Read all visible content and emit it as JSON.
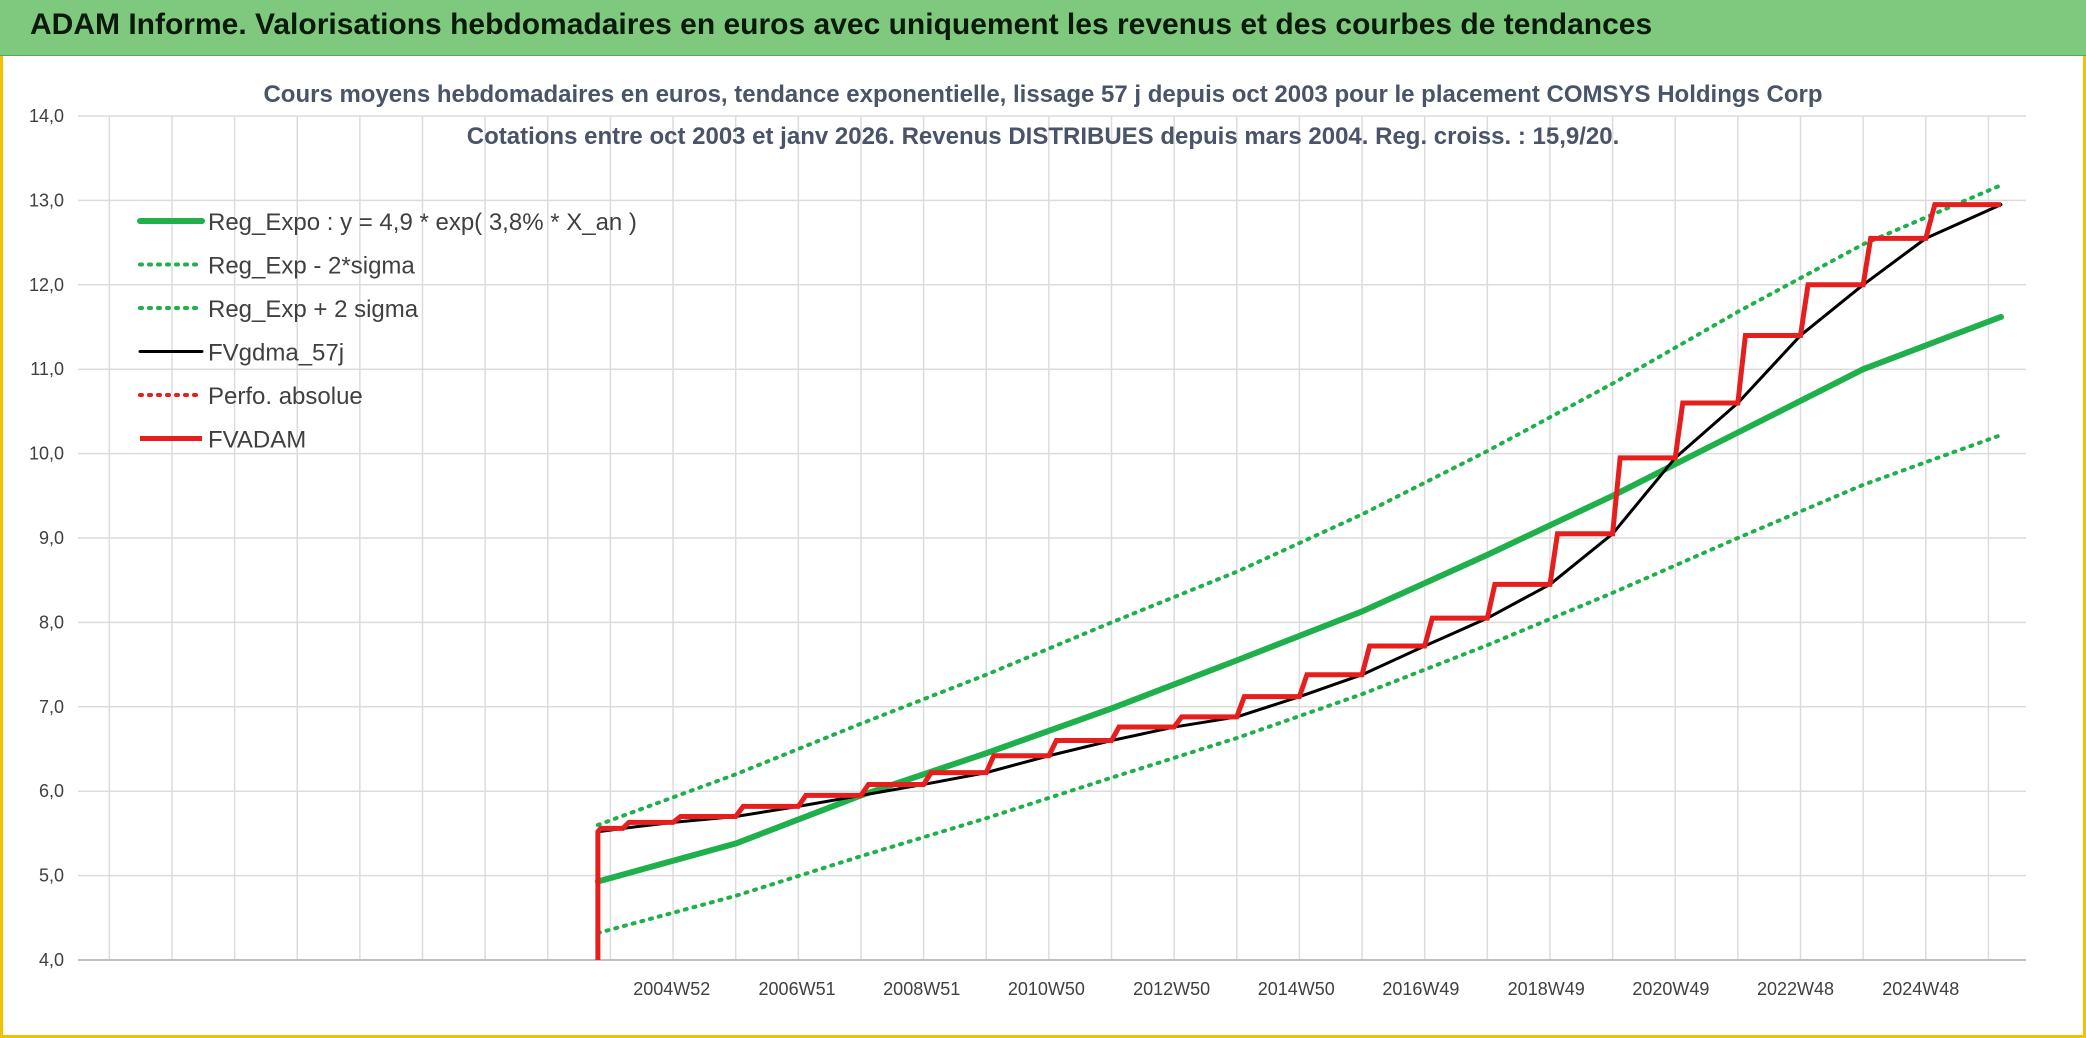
{
  "banner": {
    "title": "ADAM Informe. Valorisations hebdomadaires en euros avec uniquement les revenus et des courbes de tendances"
  },
  "colors": {
    "banner_bg": "#7fc97f",
    "frame_accent": "#f2c200",
    "trend_green": "#1fb04b",
    "price_black": "#000000",
    "adam_red": "#e61e1e",
    "grid": "#dcdcdc"
  },
  "chart_data": {
    "type": "line",
    "title": [
      "Cours moyens hebdomadaires en euros, tendance exponentielle, lissage 57 j depuis oct 2003 pour le placement COMSYS Holdings Corp",
      "Cotations entre oct 2003 et janv 2026. Revenus DISTRIBUES depuis mars 2004. Reg. croiss. : 15,9/20."
    ],
    "xlabel": "",
    "ylabel": "",
    "ylim": [
      4.0,
      14.0
    ],
    "yticks": [
      "4,0",
      "5,0",
      "6,0",
      "7,0",
      "8,0",
      "9,0",
      "10,0",
      "11,0",
      "12,0",
      "13,0",
      "14,0"
    ],
    "xlim": [
      1995.5,
      2026.6
    ],
    "xticks": [
      {
        "label": "2004W52",
        "x": 2004.98
      },
      {
        "label": "2006W51",
        "x": 2006.98
      },
      {
        "label": "2008W51",
        "x": 2008.97
      },
      {
        "label": "2010W50",
        "x": 2010.96
      },
      {
        "label": "2012W50",
        "x": 2012.96
      },
      {
        "label": "2014W50",
        "x": 2014.95
      },
      {
        "label": "2016W49",
        "x": 2016.94
      },
      {
        "label": "2018W49",
        "x": 2018.94
      },
      {
        "label": "2020W49",
        "x": 2020.93
      },
      {
        "label": "2022W48",
        "x": 2022.92
      },
      {
        "label": "2024W48",
        "x": 2024.92
      }
    ],
    "grid": true,
    "legend_position": "top-left",
    "series": [
      {
        "name": "Reg_Expo : y = 4,9 * exp( 3,8% *  X_an )",
        "style": "solid-thick",
        "color": "#1fb04b",
        "x": [
          2003.8,
          2006.0,
          2008.0,
          2010.0,
          2012.0,
          2014.0,
          2016.0,
          2018.0,
          2020.0,
          2022.0,
          2024.0,
          2026.2
        ],
        "values": [
          4.93,
          5.38,
          5.95,
          6.45,
          6.98,
          7.55,
          8.13,
          8.8,
          9.5,
          10.25,
          11.0,
          11.62
        ]
      },
      {
        "name": "Reg_Exp - 2*sigma",
        "style": "dotted",
        "color": "#1fb04b",
        "x": [
          2003.8,
          2006.0,
          2008.0,
          2010.0,
          2012.0,
          2014.0,
          2016.0,
          2018.0,
          2020.0,
          2022.0,
          2024.0,
          2026.2
        ],
        "values": [
          4.32,
          4.76,
          5.23,
          5.68,
          6.16,
          6.63,
          7.15,
          7.73,
          8.35,
          9.0,
          9.63,
          10.22
        ]
      },
      {
        "name": "Reg_Exp + 2 sigma",
        "style": "dotted",
        "color": "#1fb04b",
        "x": [
          2003.8,
          2006.0,
          2008.0,
          2010.0,
          2012.0,
          2014.0,
          2016.0,
          2018.0,
          2020.0,
          2022.0,
          2024.0,
          2026.2
        ],
        "values": [
          5.6,
          6.2,
          6.8,
          7.38,
          8.0,
          8.6,
          9.28,
          10.03,
          10.83,
          11.68,
          12.48,
          13.18
        ]
      },
      {
        "name": "FVgdma_57j",
        "style": "solid",
        "color": "#000000",
        "x": [
          2003.8,
          2004.2,
          2005.0,
          2006.0,
          2007.0,
          2008.0,
          2009.0,
          2010.0,
          2011.0,
          2012.0,
          2013.0,
          2014.0,
          2015.0,
          2016.0,
          2017.0,
          2018.0,
          2019.0,
          2020.0,
          2021.0,
          2022.0,
          2023.0,
          2024.0,
          2025.0,
          2026.2
        ],
        "values": [
          5.52,
          5.56,
          5.63,
          5.7,
          5.82,
          5.95,
          6.08,
          6.22,
          6.42,
          6.6,
          6.76,
          6.88,
          7.12,
          7.38,
          7.72,
          8.05,
          8.45,
          9.05,
          9.95,
          10.6,
          11.4,
          12.0,
          12.55,
          12.95
        ]
      },
      {
        "name": "Perfo. absolue",
        "style": "dotted",
        "color": "#e61e1e",
        "x": [],
        "values": []
      },
      {
        "name": "FVADAM",
        "style": "step-thick",
        "color": "#e61e1e",
        "x": [
          2003.8,
          2003.8,
          2004.2,
          2005.0,
          2006.0,
          2007.0,
          2008.0,
          2009.0,
          2010.0,
          2011.0,
          2012.0,
          2013.0,
          2014.0,
          2015.0,
          2016.0,
          2017.0,
          2018.0,
          2019.0,
          2020.0,
          2021.0,
          2022.0,
          2023.0,
          2024.0,
          2025.0,
          2026.2
        ],
        "values": [
          4.0,
          5.52,
          5.56,
          5.63,
          5.7,
          5.82,
          5.95,
          6.08,
          6.22,
          6.42,
          6.6,
          6.76,
          6.88,
          7.12,
          7.38,
          7.72,
          8.05,
          8.45,
          9.05,
          9.95,
          10.6,
          11.4,
          12.0,
          12.55,
          12.95
        ]
      }
    ]
  }
}
